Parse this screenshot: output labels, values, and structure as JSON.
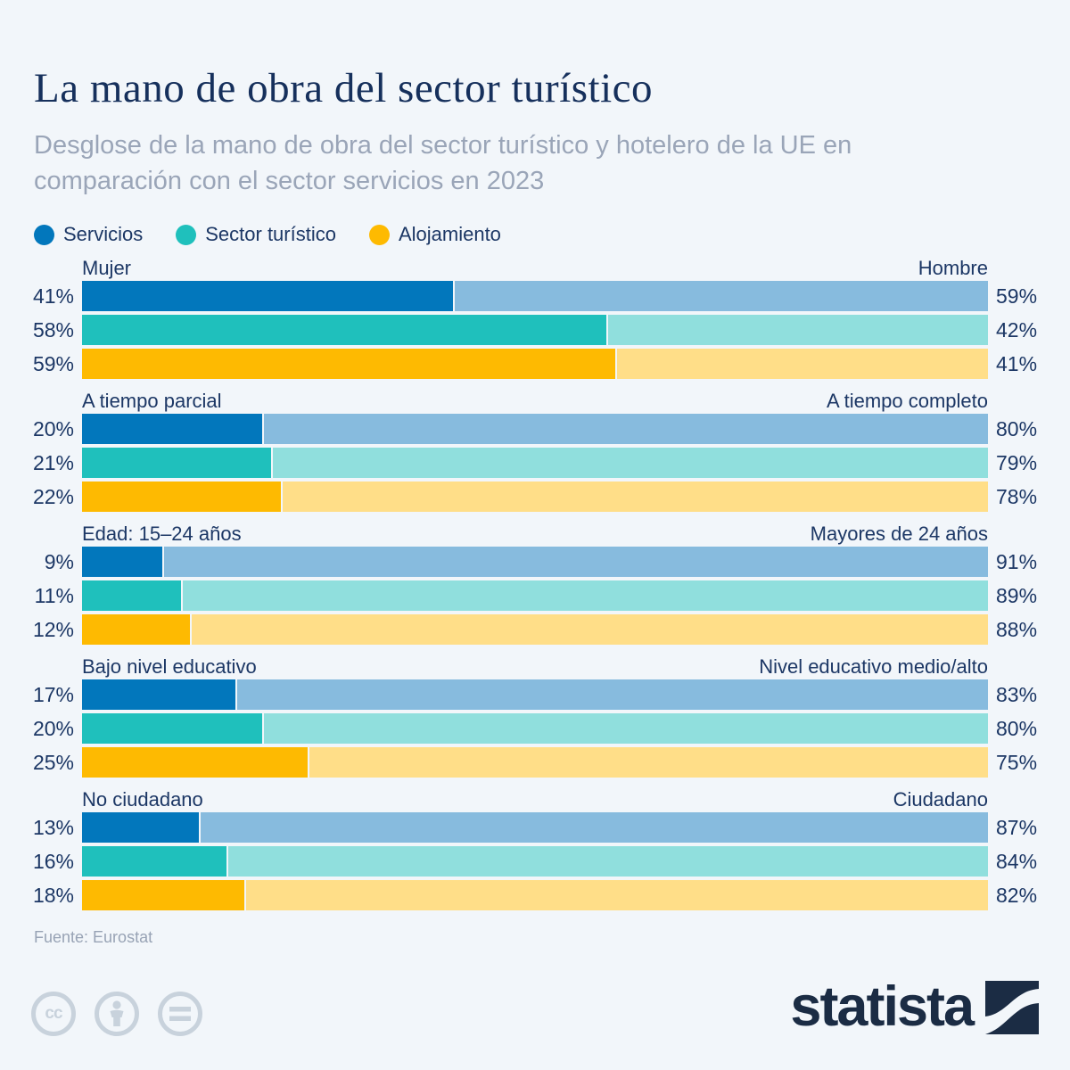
{
  "header": {
    "title": "La mano de obra del sector turístico",
    "subtitle_line1": "Desglose de la mano de obra del sector turístico y hotelero de la UE en",
    "subtitle_line2": "comparación con el sector servicios en 2023"
  },
  "legend": [
    {
      "label": "Servicios",
      "color": "#0277BC",
      "light_color": "#87BBDE"
    },
    {
      "label": "Sector turístico",
      "color": "#1FC0BC",
      "light_color": "#90DFDD"
    },
    {
      "label": "Alojamiento",
      "color": "#FEBA01",
      "light_color": "#FFDE88"
    }
  ],
  "chart_data": {
    "type": "bar",
    "variant": "horizontal-100pct-stacked-pairs",
    "unit": "%",
    "series_names": [
      "Servicios",
      "Sector turístico",
      "Alojamiento"
    ],
    "groups": [
      {
        "left_label": "Mujer",
        "right_label": "Hombre",
        "left_values": [
          41,
          58,
          59
        ],
        "right_values": [
          59,
          42,
          41
        ]
      },
      {
        "left_label": "A tiempo parcial",
        "right_label": "A tiempo completo",
        "left_values": [
          20,
          21,
          22
        ],
        "right_values": [
          80,
          79,
          78
        ]
      },
      {
        "left_label": "Edad: 15–24 años",
        "right_label": "Mayores de 24 años",
        "left_values": [
          9,
          11,
          12
        ],
        "right_values": [
          91,
          89,
          88
        ]
      },
      {
        "left_label": "Bajo nivel educativo",
        "right_label": "Nivel educativo medio/alto",
        "left_values": [
          17,
          20,
          25
        ],
        "right_values": [
          83,
          80,
          75
        ]
      },
      {
        "left_label": "No ciudadano",
        "right_label": "Ciudadano",
        "left_values": [
          13,
          16,
          18
        ],
        "right_values": [
          87,
          84,
          82
        ]
      }
    ],
    "axis_range": [
      0,
      100
    ],
    "grid": false,
    "legend_position": "top-left"
  },
  "source": "Fuente: Eurostat",
  "footer": {
    "brand": "statista",
    "license_icons": [
      "cc-icon",
      "attribution-person-icon",
      "no-derivatives-equals-icon"
    ],
    "cc_label": "cc"
  },
  "colors": {
    "background": "#F2F6FA",
    "title": "#16305C",
    "subtitle": "#9AA5B8",
    "label": "#1C3765",
    "source": "#98A3B5",
    "license_gray": "#C8D2DC",
    "brand_navy": "#1B2C44"
  }
}
